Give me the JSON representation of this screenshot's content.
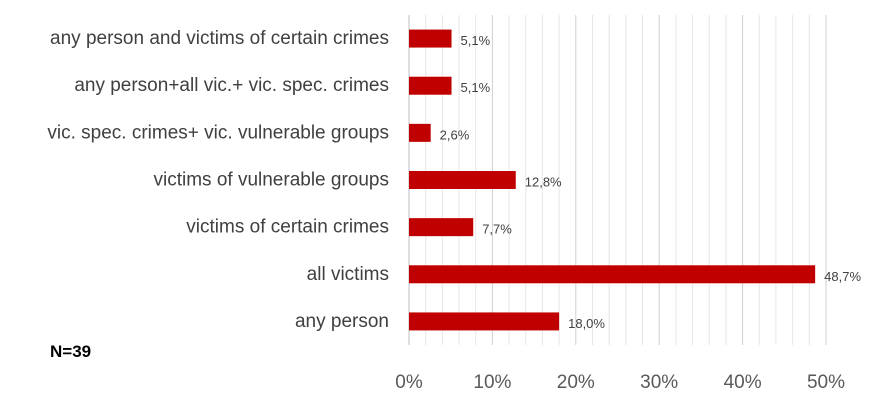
{
  "chart_data": {
    "type": "bar",
    "orientation": "horizontal",
    "categories": [
      "any person and victims of certain crimes",
      "any person+all vic.+ vic. spec. crimes",
      "vic. spec. crimes+ vic. vulnerable groups",
      "victims of vulnerable groups",
      "victims of certain crimes",
      "all victims",
      "any person"
    ],
    "values": [
      5.1,
      5.1,
      2.6,
      12.8,
      7.7,
      48.7,
      18.0
    ],
    "data_labels": [
      "5,1%",
      "5,1%",
      "2,6%",
      "12,8%",
      "7,7%",
      "48,7%",
      "18,0%"
    ],
    "xlim": [
      0,
      50
    ],
    "x_ticks": [
      "0%",
      "10%",
      "20%",
      "30%",
      "40%",
      "50%"
    ],
    "minor_gridlines_every": 2,
    "grid": true,
    "legend": "none",
    "bar_color": "#C00000",
    "title": "",
    "xlabel": "",
    "ylabel": ""
  },
  "annotation": {
    "note": "N=39"
  }
}
